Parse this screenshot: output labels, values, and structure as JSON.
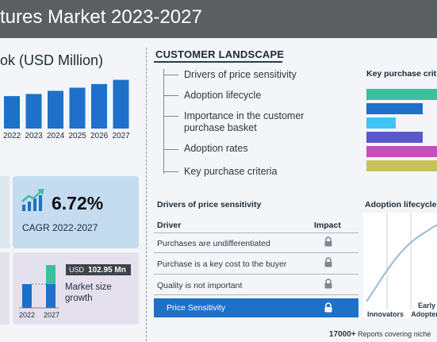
{
  "header": {
    "title": "tures Market 2023-2027"
  },
  "outlook": {
    "title": "ok (USD Million)",
    "years": [
      "2022",
      "2023",
      "2024",
      "2025",
      "2026",
      "2027"
    ],
    "bar_levels": [
      0.62,
      0.66,
      0.72,
      0.78,
      0.85,
      0.93
    ],
    "bar_color": "#1f70c8"
  },
  "customer": {
    "title": "CUSTOMER LANDSCAPE",
    "items": [
      "Drivers of price sensitivity",
      "Adoption lifecycle",
      "Importance in the customer purchase basket",
      "Adoption rates",
      "Key purchase criteria"
    ]
  },
  "key_purchase": {
    "title": "Key purchase crit",
    "bars": [
      {
        "color": "#3dbf9c",
        "level": 1.0
      },
      {
        "color": "#1f70c8",
        "level": 0.8
      },
      {
        "color": "#40c4f2",
        "level": 0.42
      },
      {
        "color": "#5858c8",
        "level": 0.8
      },
      {
        "color": "#c64fb8",
        "level": 1.0
      },
      {
        "color": "#c6c35a",
        "level": 1.0
      }
    ]
  },
  "cagr": {
    "value": "6.72%",
    "label": "CAGR  2022-2027",
    "icon": "growth-chart-icon"
  },
  "market_growth": {
    "badge_prefix": "USD",
    "badge_value": "102.95 Mn",
    "label": "Market size growth",
    "years": [
      "2022",
      "2027"
    ],
    "base_color": "#1f70c8",
    "increment_color": "#3dbf9c"
  },
  "drivers": {
    "title": "Drivers of price sensitivity",
    "col_driver": "Driver",
    "col_impact": "Impact",
    "rows": [
      "Purchases are undifferentiated",
      "Purchase is a key cost to the buyer",
      "Quality is not important"
    ],
    "highlight": "Price Sensitivity",
    "lock_icon": "lock-icon"
  },
  "adoption": {
    "title": "Adoption lifecycle",
    "stages": [
      "Innovators",
      "Early Adopters"
    ]
  },
  "footer": {
    "count": "17000+",
    "text": " Reports covering niche"
  }
}
